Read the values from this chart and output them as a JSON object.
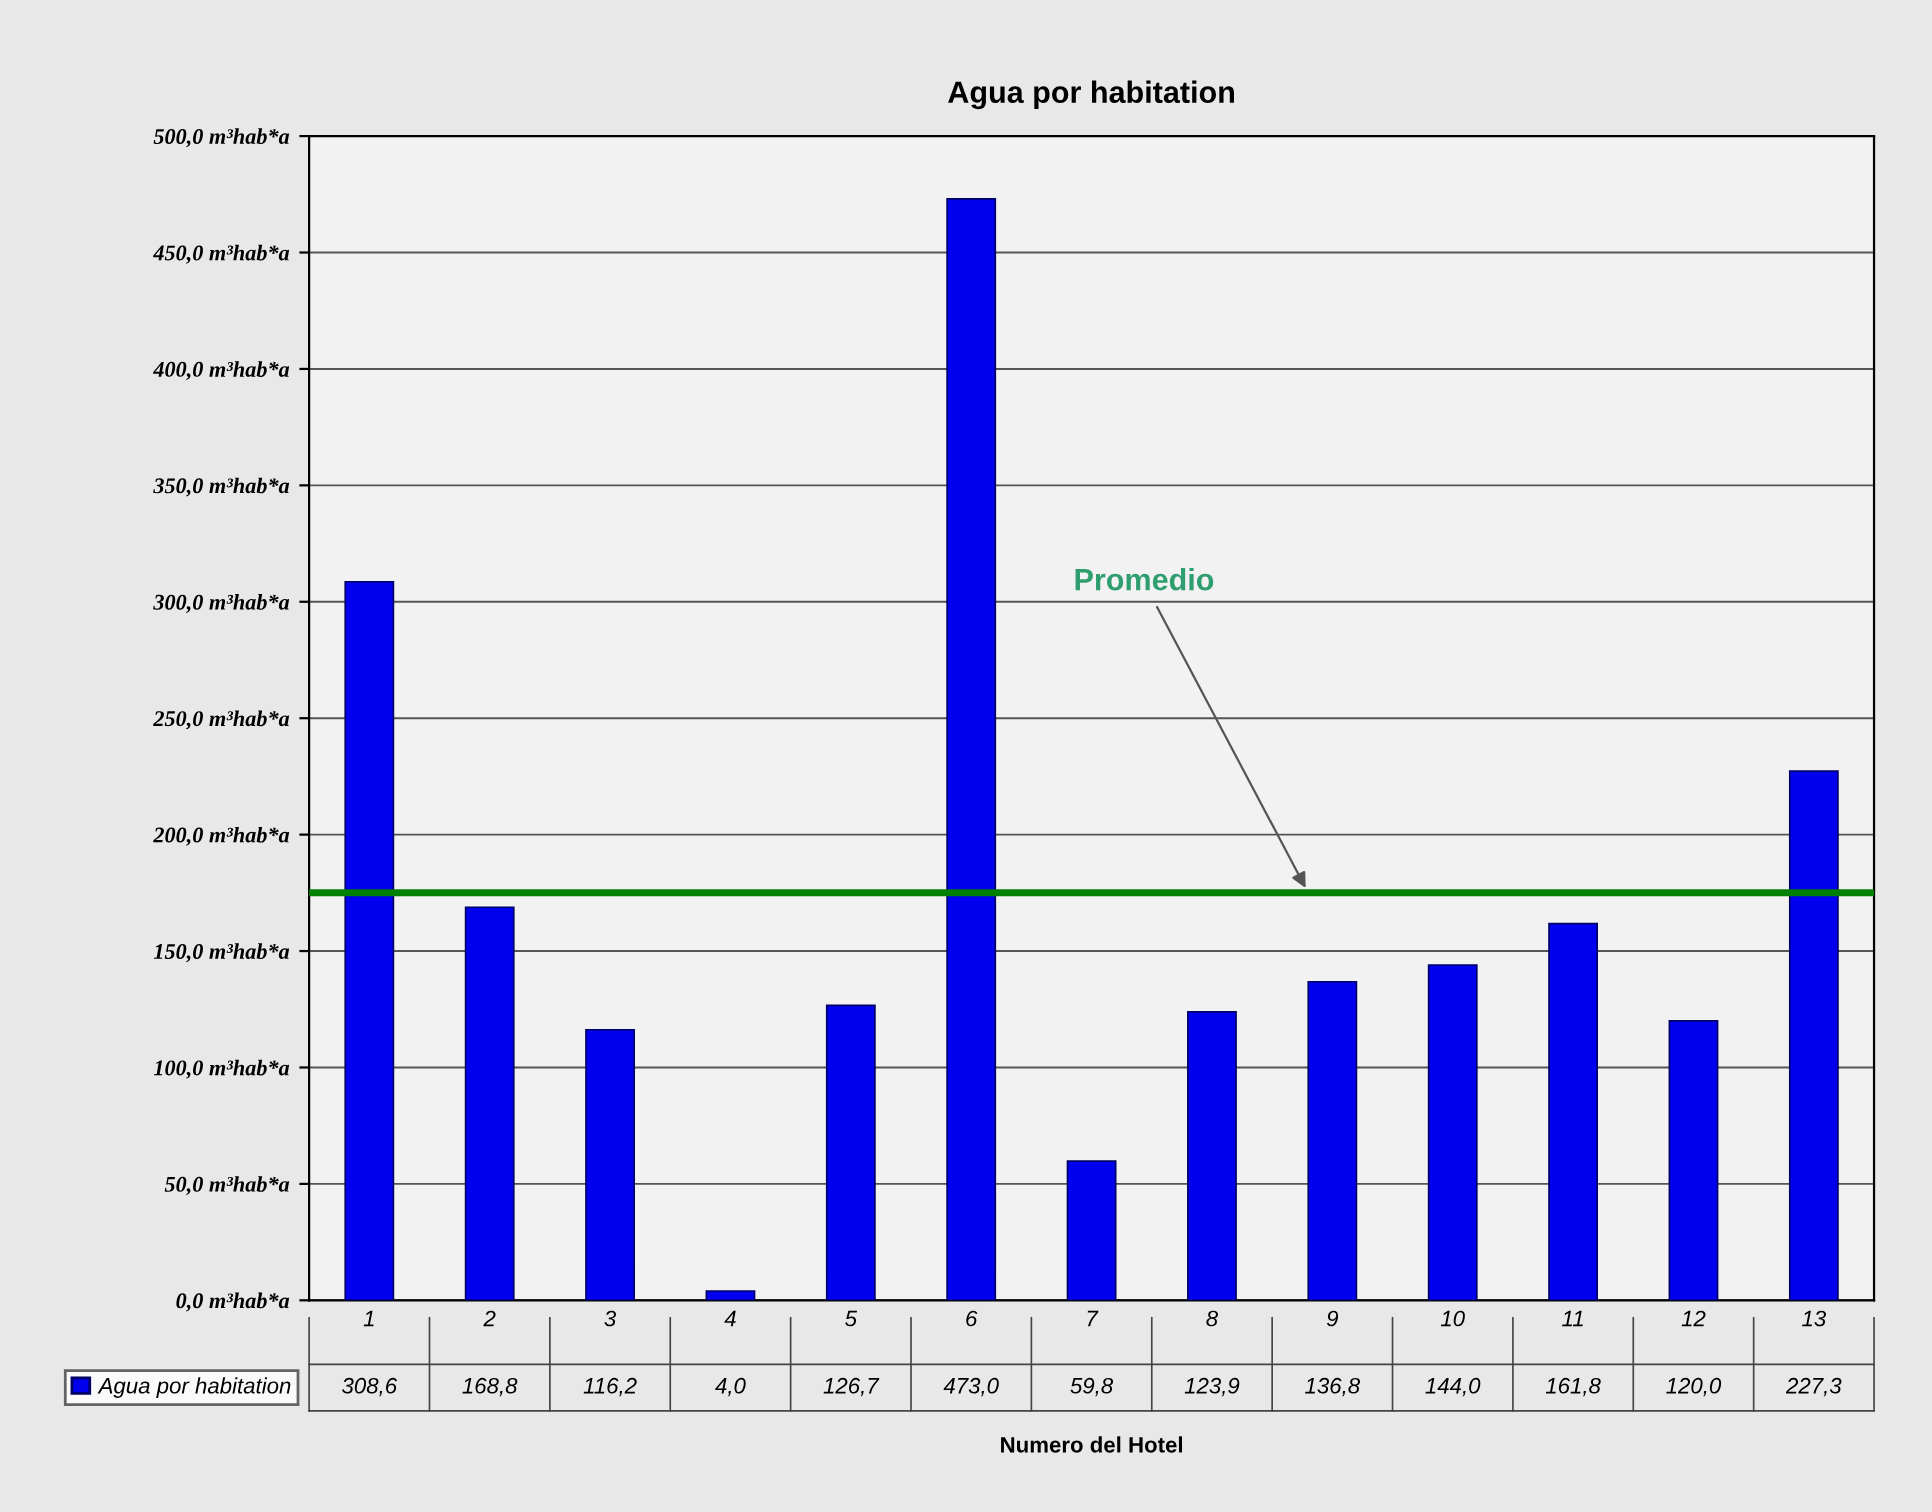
{
  "chart_data": {
    "type": "bar",
    "title": "Agua por habitation",
    "xlabel": "Numero del Hotel",
    "categories": [
      "1",
      "2",
      "3",
      "4",
      "5",
      "6",
      "7",
      "8",
      "9",
      "10",
      "11",
      "12",
      "13"
    ],
    "series": [
      {
        "name": "Agua por habitation",
        "color": "#0000ee",
        "values": [
          308.6,
          168.8,
          116.2,
          4.0,
          126.7,
          473.0,
          59.8,
          123.9,
          136.8,
          144.0,
          161.8,
          120.0,
          227.3
        ],
        "value_labels": [
          "308,6",
          "168,8",
          "116,2",
          "4,0",
          "126,7",
          "473,0",
          "59,8",
          "123,9",
          "136,8",
          "144,0",
          "161,8",
          "120,0",
          "227,3"
        ]
      }
    ],
    "ylim": [
      0,
      500
    ],
    "yticks": [
      {
        "value": 0,
        "label": "0,0 m³hab*a"
      },
      {
        "value": 50,
        "label": "50,0 m³hab*a"
      },
      {
        "value": 100,
        "label": "100,0 m³hab*a"
      },
      {
        "value": 150,
        "label": "150,0 m³hab*a"
      },
      {
        "value": 200,
        "label": "200,0 m³hab*a"
      },
      {
        "value": 250,
        "label": "250,0 m³hab*a"
      },
      {
        "value": 300,
        "label": "300,0 m³hab*a"
      },
      {
        "value": 350,
        "label": "350,0 m³hab*a"
      },
      {
        "value": 400,
        "label": "400,0 m³hab*a"
      },
      {
        "value": 450,
        "label": "450,0 m³hab*a"
      },
      {
        "value": 500,
        "label": "500,0 m³hab*a"
      }
    ],
    "ref_lines": [
      {
        "axis": "y",
        "value": 175,
        "label": "Promedio",
        "color": "#008000",
        "line_style": "solid"
      }
    ],
    "grid": "y",
    "legend": "bottom left"
  }
}
